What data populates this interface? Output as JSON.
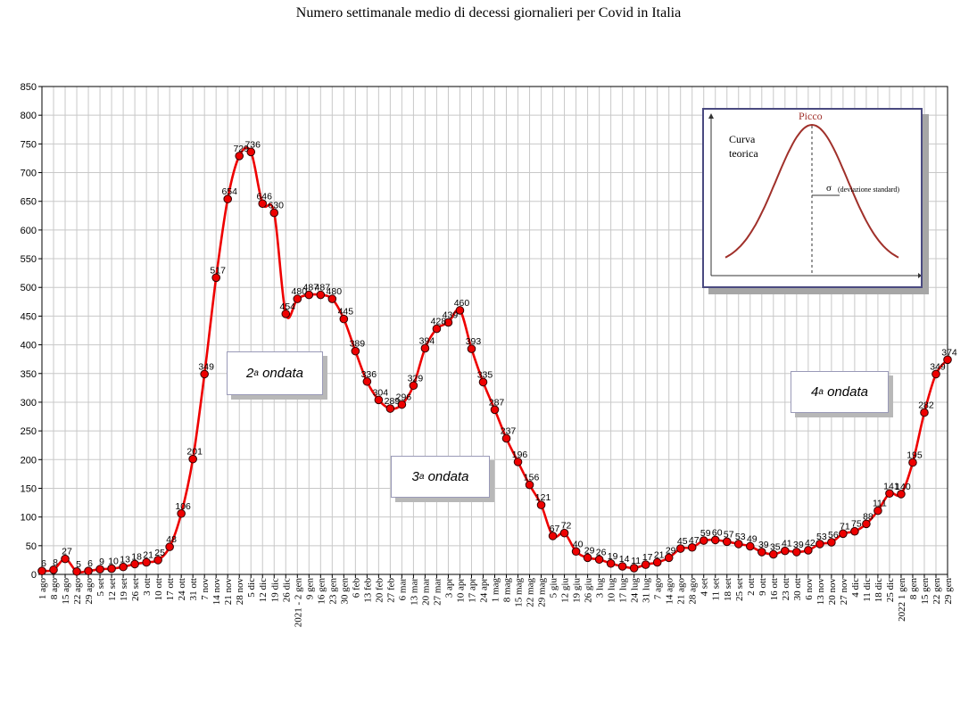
{
  "chart_data": {
    "type": "line",
    "title": "Numero settimanale medio di decessi giornalieri per Covid in Italia",
    "ylim": [
      0,
      850
    ],
    "yticks": [
      0,
      50,
      100,
      150,
      200,
      250,
      300,
      350,
      400,
      450,
      500,
      550,
      600,
      650,
      700,
      750,
      800,
      850
    ],
    "grid": true,
    "line_color": "#ee0000",
    "marker_color": "#ee0000",
    "x": [
      "1 ago",
      "8 ago",
      "15 ago",
      "22 ago",
      "29 ago",
      "5 set",
      "12 set",
      "19 set",
      "26 set",
      "3 ott",
      "10 ott",
      "17 ott",
      "24 ott",
      "31 ott",
      "7 nov",
      "14 nov",
      "21 nov",
      "28 nov",
      "5 dic",
      "12 dic",
      "19 dic",
      "26 dic",
      "2021 - 2 gen",
      "9 gen",
      "16 gen",
      "23 gen",
      "30 gen",
      "6 feb",
      "13 feb",
      "20 feb",
      "27 feb",
      "6 mar",
      "13 mar",
      "20 mar",
      "27 mar",
      "3 apr",
      "10 apr",
      "17 apr",
      "24 apr",
      "1 mag",
      "8 mag",
      "15 mag",
      "22 mag",
      "29 mag",
      "5 giu",
      "12 giu",
      "19 giu",
      "26 giu",
      "3 lug",
      "10 lug",
      "17 lug",
      "24 lug",
      "31 lug",
      "7 ago",
      "14 ago",
      "21 ago",
      "28 ago",
      "4 set",
      "11 set",
      "18 set",
      "25 set",
      "2 ott",
      "9 ott",
      "16 ott",
      "23 ott",
      "30 ott",
      "6 nov",
      "13 nov",
      "20 nov",
      "27 nov",
      "4 dic",
      "11 dic",
      "18 dic",
      "25 dic",
      "2022 1 gen",
      "8 gen",
      "15 gen",
      "22 gen",
      "29 gen"
    ],
    "values": [
      6,
      8,
      27,
      5,
      6,
      9,
      10,
      13,
      18,
      21,
      25,
      48,
      106,
      201,
      349,
      517,
      654,
      729,
      736,
      646,
      630,
      454,
      480,
      487,
      487,
      480,
      445,
      389,
      336,
      304,
      289,
      296,
      329,
      394,
      428,
      439,
      460,
      393,
      335,
      287,
      237,
      196,
      156,
      121,
      67,
      72,
      40,
      29,
      26,
      19,
      14,
      11,
      17,
      21,
      29,
      45,
      47,
      59,
      60,
      57,
      53,
      49,
      39,
      35,
      41,
      39,
      42,
      53,
      56,
      71,
      75,
      88,
      111,
      141,
      140,
      195,
      282,
      349,
      374
    ],
    "labels": [
      "6",
      "8",
      "27",
      "5",
      "6",
      "9",
      "10",
      "13",
      "18",
      "21",
      "25",
      "48",
      "106",
      "201",
      "349",
      "517",
      "654",
      "729",
      "736",
      "646",
      "630",
      "454",
      "480",
      "487",
      "487",
      "480",
      "445",
      "389",
      "336",
      "304",
      "289",
      "296",
      "329",
      "394",
      "428",
      "439",
      "460",
      "393",
      "335",
      "287",
      "237",
      "196",
      "156",
      "121",
      "67",
      "72",
      "40",
      "29",
      "26",
      "19",
      "14",
      "11",
      "17",
      "21",
      "29",
      "45",
      "47",
      "59",
      "60",
      "57",
      "53",
      "49",
      "39",
      "35",
      "41",
      "39",
      "42",
      "53",
      "56",
      "71",
      "75",
      "88",
      "111",
      "141",
      "140",
      "195",
      "282",
      "349",
      "374"
    ],
    "annotations": {
      "wave2": {
        "text": "2",
        "sup": "a",
        "rest": " ondata"
      },
      "wave3": {
        "text": "3",
        "sup": "a",
        "rest": " ondata"
      },
      "wave4": {
        "text": "4",
        "sup": "a",
        "rest": " ondata"
      }
    },
    "inset": {
      "peak_label": "Picco",
      "curve_label_1": "Curva",
      "curve_label_2": "teorica",
      "sigma_symbol": "σ",
      "sigma_label": "(deviazione standard)",
      "curve_color": "#a0302a"
    }
  }
}
